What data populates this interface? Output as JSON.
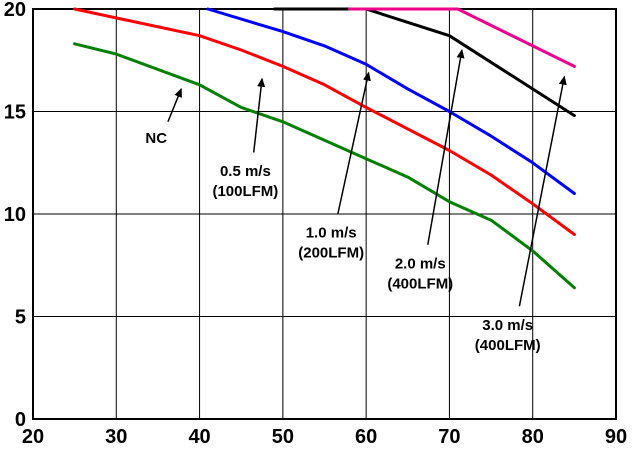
{
  "chart_data": {
    "type": "line",
    "title": "",
    "xlabel": "",
    "ylabel": "",
    "xlim": [
      20,
      90
    ],
    "ylim": [
      0,
      20
    ],
    "x_ticks": [
      20,
      30,
      40,
      50,
      60,
      70,
      80,
      90
    ],
    "y_ticks": [
      0,
      5,
      10,
      15,
      20
    ],
    "grid": true,
    "legend_position": "none",
    "series": [
      {
        "name": "NC",
        "color": "#008000",
        "points": [
          [
            25,
            18.3
          ],
          [
            30,
            17.8
          ],
          [
            40,
            16.3
          ],
          [
            45,
            15.2
          ],
          [
            50,
            14.5
          ],
          [
            55,
            13.6
          ],
          [
            60,
            12.7
          ],
          [
            65,
            11.8
          ],
          [
            70,
            10.6
          ],
          [
            75,
            9.7
          ],
          [
            80,
            8.2
          ],
          [
            85,
            6.4
          ]
        ]
      },
      {
        "name": "0.5 m/s (100LFM)",
        "color": "#ff0000",
        "points": [
          [
            25,
            20
          ],
          [
            40,
            18.7
          ],
          [
            45,
            18.0
          ],
          [
            50,
            17.2
          ],
          [
            55,
            16.3
          ],
          [
            60,
            15.2
          ],
          [
            70,
            13.1
          ],
          [
            75,
            11.9
          ],
          [
            80,
            10.5
          ],
          [
            85,
            9.0
          ]
        ]
      },
      {
        "name": "1.0 m/s (200LFM)",
        "color": "#0000ff",
        "points": [
          [
            41,
            20
          ],
          [
            50,
            18.9
          ],
          [
            55,
            18.2
          ],
          [
            60,
            17.3
          ],
          [
            65,
            16.1
          ],
          [
            70,
            15.0
          ],
          [
            75,
            13.8
          ],
          [
            80,
            12.5
          ],
          [
            85,
            11.0
          ]
        ]
      },
      {
        "name": "2.0 m/s (400LFM)",
        "color": "#000000",
        "points": [
          [
            49,
            20
          ],
          [
            60,
            20
          ],
          [
            70,
            18.7
          ],
          [
            85,
            14.8
          ]
        ]
      },
      {
        "name": "3.0 m/s (400LFM)",
        "color": "#ec008c",
        "points": [
          [
            58,
            20
          ],
          [
            71,
            20
          ],
          [
            85,
            17.2
          ]
        ]
      }
    ],
    "annotations": [
      {
        "lines": [
          "NC"
        ],
        "text_pos": [
          34.8,
          13.7
        ],
        "arrow_from": [
          36.2,
          14.5
        ],
        "arrow_to": [
          37.8,
          16.1
        ]
      },
      {
        "lines": [
          "0.5 m/s",
          "(100LFM)"
        ],
        "text_pos": [
          45.5,
          11.6
        ],
        "arrow_from": [
          46.5,
          13.0
        ],
        "arrow_to": [
          47.5,
          16.6
        ]
      },
      {
        "lines": [
          "1.0 m/s",
          "(200LFM)"
        ],
        "text_pos": [
          55.8,
          8.6
        ],
        "arrow_from": [
          56.6,
          10.0
        ],
        "arrow_to": [
          60.3,
          16.9
        ]
      },
      {
        "lines": [
          "2.0 m/s",
          "(400LFM)"
        ],
        "text_pos": [
          66.5,
          7.1
        ],
        "arrow_from": [
          67.4,
          8.5
        ],
        "arrow_to": [
          71.5,
          18.0
        ]
      },
      {
        "lines": [
          "3.0 m/s",
          "(400LFM)"
        ],
        "text_pos": [
          77.0,
          4.1
        ],
        "arrow_from": [
          78.4,
          5.5
        ],
        "arrow_to": [
          83.8,
          16.7
        ]
      }
    ]
  }
}
